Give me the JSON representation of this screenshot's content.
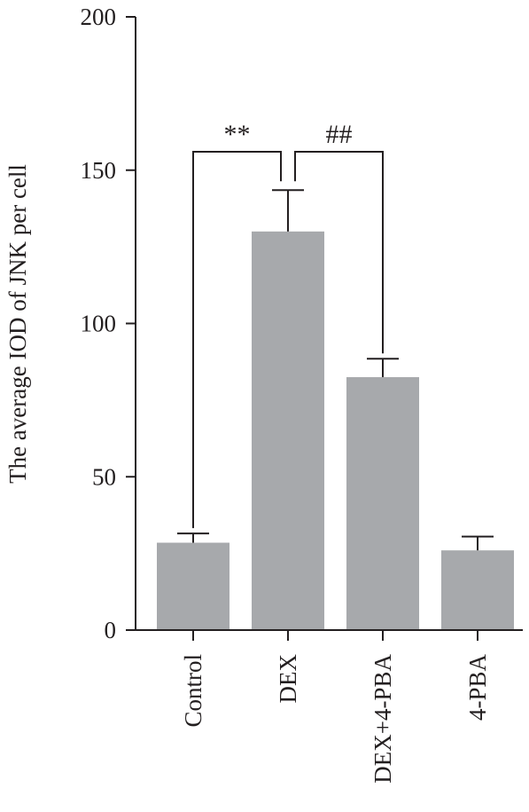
{
  "chart_data": {
    "type": "bar",
    "categories": [
      "Control",
      "DEX",
      "DEX+4-PBA",
      "4-PBA"
    ],
    "values": [
      28.5,
      130,
      82.5,
      26
    ],
    "error": [
      3,
      13.5,
      6,
      4.5
    ],
    "ylabel": "The average IOD of JNK per cell",
    "xlabel": "",
    "ylim": [
      0,
      200
    ],
    "yticks": [
      0,
      50,
      100,
      150,
      200
    ],
    "grid": false,
    "bar_color": "#a7a9ac",
    "axis_color": "#231f20",
    "annotations": [
      {
        "label": "**",
        "from": "Control",
        "to": "DEX"
      },
      {
        "label": "##",
        "from": "DEX",
        "to": "DEX+4-PBA"
      }
    ]
  }
}
